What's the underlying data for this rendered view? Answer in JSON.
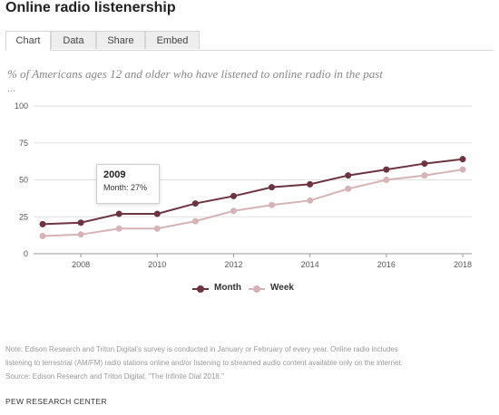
{
  "title": "Online radio listenership",
  "tabs": [
    {
      "label": "Chart",
      "active": true
    },
    {
      "label": "Data",
      "active": false
    },
    {
      "label": "Share",
      "active": false
    },
    {
      "label": "Embed",
      "active": false
    }
  ],
  "subtitle": "% of Americans ages 12 and older who have listened to online radio in the past",
  "subtitle_more": "...",
  "tooltip": {
    "year": "2009",
    "text": "Month: 27%"
  },
  "legend": {
    "month": "Month",
    "week": "Week"
  },
  "note_lines": [
    "Note: Edison Research and Triton Digital's survey is conducted in January or February of every year. Online radio includes",
    "listening to terrestrial (AM/FM) radio stations online and/or listening to streamed audio content available only on the internet.",
    "Source: Edison Research and Triton Digital, \"The Infinite Dial 2018.\""
  ],
  "org": "PEW RESEARCH CENTER",
  "colors": {
    "month": "#6b3440",
    "week": "#d5b3b7",
    "grid": "#e2e2e2",
    "axis": "#999999"
  },
  "chart_data": {
    "type": "line",
    "x": [
      2007,
      2008,
      2009,
      2010,
      2011,
      2012,
      2013,
      2014,
      2015,
      2016,
      2017,
      2018
    ],
    "series": [
      {
        "name": "Month",
        "values": [
          20,
          21,
          27,
          27,
          34,
          39,
          45,
          47,
          53,
          57,
          61,
          64
        ]
      },
      {
        "name": "Week",
        "values": [
          12,
          13,
          17,
          17,
          22,
          29,
          33,
          36,
          44,
          50,
          53,
          57
        ]
      }
    ],
    "x_ticks": [
      "2008",
      "2010",
      "2012",
      "2014",
      "2016",
      "2018"
    ],
    "y_ticks": [
      "0",
      "25",
      "50",
      "75",
      "100"
    ],
    "ylim": [
      0,
      100
    ],
    "xlim": [
      2007,
      2018
    ],
    "grid": true,
    "legend_position": "bottom"
  }
}
